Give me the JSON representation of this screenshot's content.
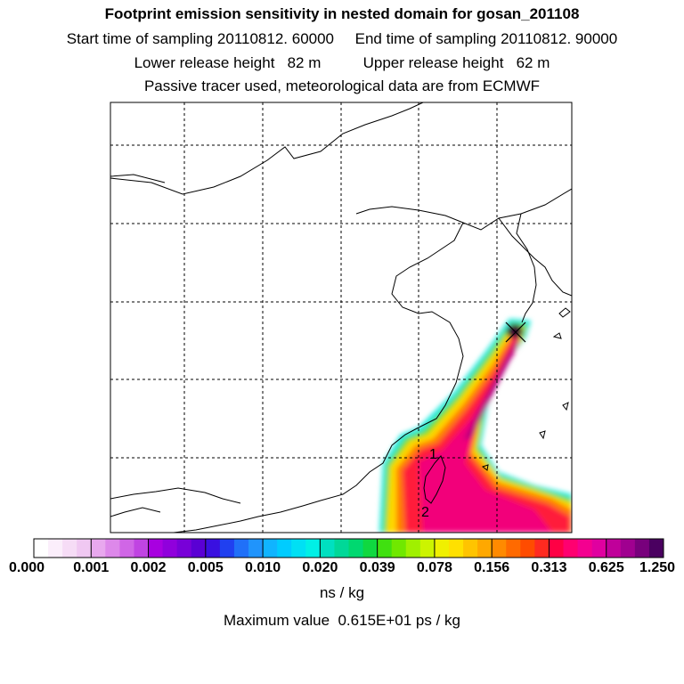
{
  "title": {
    "line1": "Footprint emission sensitivity in nested domain for gosan_201108",
    "line2": "Start time of sampling 20110812. 60000     End time of sampling 20110812. 90000",
    "line3": "Lower release height   82 m          Upper release height   62 m",
    "line4": "Passive tracer used, meteorological data are from ECMWF"
  },
  "chart_data": {
    "type": "heatmap",
    "title": "Footprint emission sensitivity in nested domain for gosan_201108",
    "colorbar": {
      "tick_labels": [
        "0.000",
        "0.001",
        "0.002",
        "0.005",
        "0.010",
        "0.020",
        "0.039",
        "0.078",
        "0.156",
        "0.313",
        "0.625",
        "1.250"
      ],
      "units": "ns / kg"
    },
    "max_value_text": "Maximum value  0.615E+01 ps / kg",
    "markers": [
      {
        "label": "1"
      },
      {
        "label": "2"
      }
    ],
    "receptor_marker": "x",
    "grid": true
  },
  "colors": {
    "plume_low": "#ffcc00",
    "plume_mid": "#ff2222",
    "plume_high": "#ee0088",
    "plume_peak": "#440044",
    "edge_cyan": "#00eedd",
    "edge_green": "#55dd22"
  }
}
